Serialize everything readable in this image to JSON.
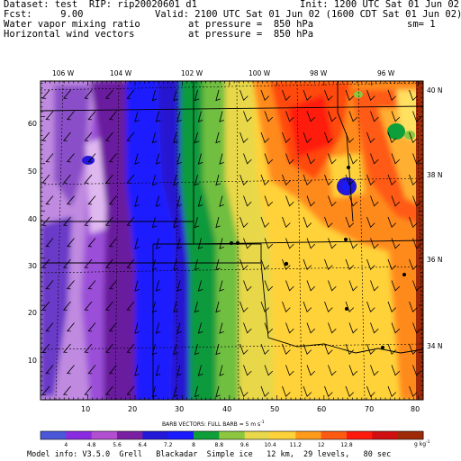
{
  "header": {
    "dataset": "Dataset: test  RIP: rip20020601 d1",
    "init": "Init: 1200 UTC Sat 01 Jun 02",
    "fcst": "Fcst:     9.00",
    "valid": "Valid: 2100 UTC Sat 01 Jun 02 (1600 CDT Sat 01 Jun 02)",
    "field1": "Water vapor mixing ratio",
    "field1_level": "at pressure =  850 hPa",
    "sm": "sm= 1",
    "field2": "Horizontal wind vectors",
    "field2_level": "at pressure =  850 hPa"
  },
  "map": {
    "longitude_labels": [
      "106 W",
      "104 W",
      "102 W",
      "100 W",
      "98 W",
      "96 W"
    ],
    "latitude_labels": [
      "40 N",
      "38 N",
      "36 N",
      "34 N"
    ],
    "x_ticks": [
      "10",
      "20",
      "30",
      "40",
      "50",
      "60",
      "70",
      "80"
    ],
    "y_ticks": [
      "60",
      "50",
      "40",
      "30",
      "20",
      "10"
    ]
  },
  "barbs_title": "BARB VECTORS:  FULL BARB = 5 m s",
  "barbs_unit_sup": "-1",
  "colorbar": {
    "values": [
      "4",
      "4.8",
      "5.6",
      "6.4",
      "7.2",
      "8",
      "8.8",
      "9.6",
      "10.4",
      "11.2",
      "12",
      "12.8"
    ],
    "unit": "g kg",
    "unit_sup": "-1",
    "colors": [
      "#4a57d8",
      "#8a2be2",
      "#b24fd0",
      "#7b1fa2",
      "#2418d8",
      "#1a1aff",
      "#0f9f3a",
      "#8dc63f",
      "#e8d84a",
      "#ffd23a",
      "#ff9a1a",
      "#ff5a12",
      "#ff1a0d",
      "#d01010",
      "#9e2a08"
    ]
  },
  "footer": "Model info: V3.5.0  Grell   Blackadar  Simple ice   12 km,  29 levels,   80 sec"
}
